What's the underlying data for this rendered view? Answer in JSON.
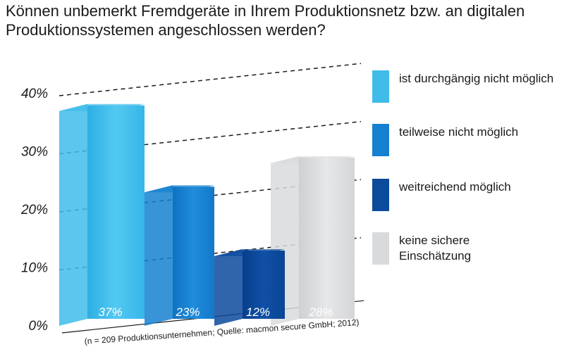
{
  "chart_data": {
    "type": "bar",
    "title": "Können unbemerkt Fremdgeräte in Ihrem Produktionsnetz bzw. an digitalen Produktionssystemen angeschlossen werden?",
    "categories": [
      "ist durchgängig nicht möglich",
      "teilweise nicht möglich",
      "weitreichend möglich",
      "keine sichere Einschätzung"
    ],
    "values": [
      37,
      23,
      12,
      28
    ],
    "value_labels": [
      "37%",
      "23%",
      "12%",
      "28%"
    ],
    "colors": [
      "#3fbcea",
      "#1680d0",
      "#0c4a9c",
      "#d9dadc"
    ],
    "ylim": [
      0,
      40
    ],
    "yticks": [
      0,
      10,
      20,
      30,
      40
    ],
    "ytick_labels": [
      "0%",
      "10%",
      "20%",
      "30%",
      "40%"
    ],
    "grid": true,
    "legend_position": "right",
    "footnote": "(n = 209 Produktionsunternehmen; Quelle: macmon secure GmbH; 2012)"
  }
}
